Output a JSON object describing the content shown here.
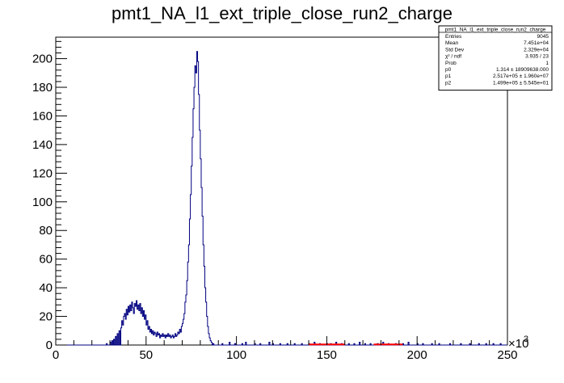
{
  "chart_data": {
    "type": "histogram",
    "title": "pmt1_NA_l1_ext_triple_close_run2_charge",
    "xlabel": "",
    "ylabel": "",
    "xlim": [
      0,
      250000
    ],
    "ylim": [
      0,
      215
    ],
    "x_multiplier_label": "×10",
    "x_multiplier_exp": "3",
    "x_ticks": [
      {
        "value": 0,
        "label": "0"
      },
      {
        "value": 50000,
        "label": "50"
      },
      {
        "value": 100000,
        "label": "100"
      },
      {
        "value": 150000,
        "label": "150"
      },
      {
        "value": 200000,
        "label": "200"
      },
      {
        "value": 250000,
        "label": "250"
      }
    ],
    "y_ticks": [
      {
        "value": 0,
        "label": "0"
      },
      {
        "value": 20,
        "label": "20"
      },
      {
        "value": 40,
        "label": "40"
      },
      {
        "value": 60,
        "label": "60"
      },
      {
        "value": 80,
        "label": "80"
      },
      {
        "value": 100,
        "label": "100"
      },
      {
        "value": 120,
        "label": "120"
      },
      {
        "value": 140,
        "label": "140"
      },
      {
        "value": 160,
        "label": "160"
      },
      {
        "value": 180,
        "label": "180"
      },
      {
        "value": 200,
        "label": "200"
      }
    ],
    "bin_width": 500,
    "bins": [
      [
        28000,
        1
      ],
      [
        30000,
        2
      ],
      [
        31000,
        3
      ],
      [
        32000,
        4
      ],
      [
        33000,
        6
      ],
      [
        34000,
        8
      ],
      [
        35000,
        10
      ],
      [
        36000,
        12
      ],
      [
        36500,
        17
      ],
      [
        37000,
        14
      ],
      [
        37500,
        20
      ],
      [
        38000,
        22
      ],
      [
        38500,
        18
      ],
      [
        39000,
        25
      ],
      [
        39500,
        21
      ],
      [
        40000,
        27
      ],
      [
        40500,
        23
      ],
      [
        41000,
        28
      ],
      [
        41500,
        24
      ],
      [
        42000,
        30
      ],
      [
        42500,
        26
      ],
      [
        43000,
        22
      ],
      [
        43500,
        29
      ],
      [
        44000,
        27
      ],
      [
        44500,
        31
      ],
      [
        45000,
        25
      ],
      [
        45500,
        28
      ],
      [
        46000,
        24
      ],
      [
        46500,
        29
      ],
      [
        47000,
        22
      ],
      [
        47500,
        26
      ],
      [
        48000,
        20
      ],
      [
        48500,
        24
      ],
      [
        49000,
        18
      ],
      [
        49500,
        21
      ],
      [
        50000,
        14
      ],
      [
        50500,
        17
      ],
      [
        51000,
        11
      ],
      [
        51500,
        13
      ],
      [
        52000,
        9
      ],
      [
        52500,
        11
      ],
      [
        53000,
        8
      ],
      [
        53500,
        10
      ],
      [
        54000,
        7
      ],
      [
        54500,
        9
      ],
      [
        55000,
        8
      ],
      [
        55500,
        6
      ],
      [
        56000,
        9
      ],
      [
        56500,
        7
      ],
      [
        57000,
        8
      ],
      [
        57500,
        5
      ],
      [
        58000,
        7
      ],
      [
        58500,
        6
      ],
      [
        59000,
        8
      ],
      [
        59500,
        6
      ],
      [
        60000,
        7
      ],
      [
        60500,
        5
      ],
      [
        61000,
        7
      ],
      [
        61500,
        6
      ],
      [
        62000,
        8
      ],
      [
        62500,
        6
      ],
      [
        63000,
        7
      ],
      [
        63500,
        5
      ],
      [
        64000,
        6
      ],
      [
        64500,
        7
      ],
      [
        65000,
        5
      ],
      [
        65500,
        6
      ],
      [
        66000,
        8
      ],
      [
        66500,
        6
      ],
      [
        67000,
        7
      ],
      [
        67500,
        9
      ],
      [
        68000,
        8
      ],
      [
        68500,
        11
      ],
      [
        69000,
        9
      ],
      [
        69500,
        13
      ],
      [
        70000,
        15
      ],
      [
        70500,
        18
      ],
      [
        71000,
        22
      ],
      [
        71500,
        30
      ],
      [
        72000,
        35
      ],
      [
        72500,
        45
      ],
      [
        73000,
        58
      ],
      [
        73500,
        70
      ],
      [
        74000,
        88
      ],
      [
        74500,
        105
      ],
      [
        75000,
        125
      ],
      [
        75500,
        145
      ],
      [
        76000,
        165
      ],
      [
        76500,
        180
      ],
      [
        77000,
        195
      ],
      [
        77500,
        190
      ],
      [
        78000,
        205
      ],
      [
        78500,
        198
      ],
      [
        79000,
        175
      ],
      [
        79500,
        150
      ],
      [
        80000,
        130
      ],
      [
        80500,
        110
      ],
      [
        81000,
        90
      ],
      [
        81500,
        70
      ],
      [
        82000,
        55
      ],
      [
        82500,
        40
      ],
      [
        83000,
        30
      ],
      [
        83500,
        20
      ],
      [
        84000,
        13
      ],
      [
        84500,
        8
      ],
      [
        85000,
        5
      ],
      [
        85500,
        3
      ],
      [
        86000,
        2
      ],
      [
        87000,
        1
      ],
      [
        92000,
        1
      ],
      [
        96000,
        2
      ],
      [
        99000,
        1
      ],
      [
        103000,
        1
      ],
      [
        105000,
        2
      ],
      [
        110000,
        1
      ],
      [
        113000,
        1
      ],
      [
        118000,
        2
      ],
      [
        120000,
        1
      ],
      [
        124000,
        1
      ],
      [
        128000,
        1
      ],
      [
        132000,
        1
      ],
      [
        136000,
        1
      ],
      [
        140000,
        1
      ],
      [
        143000,
        2
      ],
      [
        146000,
        1
      ],
      [
        150000,
        1
      ],
      [
        152000,
        1
      ],
      [
        155000,
        2
      ],
      [
        158000,
        1
      ],
      [
        162000,
        1
      ],
      [
        165000,
        1
      ],
      [
        168000,
        2
      ],
      [
        171000,
        1
      ],
      [
        174000,
        1
      ],
      [
        178000,
        1
      ],
      [
        181000,
        2
      ],
      [
        184000,
        1
      ],
      [
        188000,
        1
      ],
      [
        192000,
        1
      ],
      [
        195000,
        2
      ],
      [
        200000,
        1
      ],
      [
        203000,
        1
      ],
      [
        208000,
        1
      ],
      [
        212000,
        1
      ],
      [
        218000,
        1
      ],
      [
        224000,
        1
      ],
      [
        229000,
        1
      ],
      [
        234000,
        1
      ],
      [
        238000,
        1
      ],
      [
        242000,
        1
      ],
      [
        246000,
        1
      ]
    ],
    "line_color": "#000080",
    "fit_color": "#ff0000",
    "fit_ranges": [
      [
        140000,
        160000
      ],
      [
        176000,
        192000
      ]
    ],
    "stats_box": {
      "title": "pmt1_NA_l1_ext_triple_close_run2_charge",
      "rows": [
        {
          "label": "Entries",
          "value": "9045"
        },
        {
          "label": "Mean",
          "value": "7.451e+04"
        },
        {
          "label": "Std Dev",
          "value": "2.329e+04"
        },
        {
          "label": "χ² / ndf",
          "value": "3.935 / 23"
        },
        {
          "label": "Prob",
          "value": "1"
        },
        {
          "label": "p0",
          "value": "1.314 ± 18909638.000"
        },
        {
          "label": "p1",
          "value": "2.517e+05 ± 1.960e+07"
        },
        {
          "label": "p2",
          "value": "1.499e+05 ± 5.545e+01"
        }
      ]
    }
  }
}
